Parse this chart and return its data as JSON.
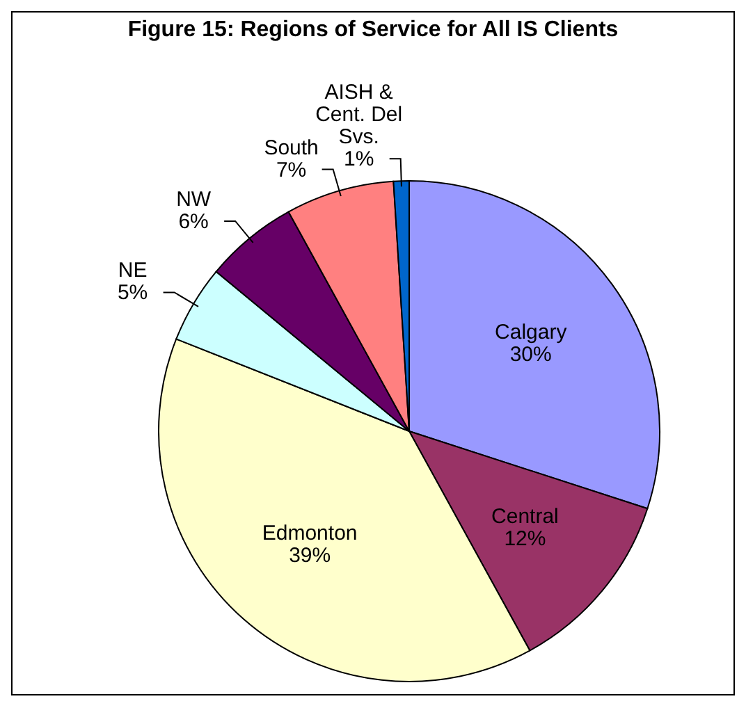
{
  "chart_data": {
    "type": "pie",
    "title": "Figure 15: Regions of Service for All IS Clients",
    "categories": [
      "Calgary",
      "Central",
      "Edmonton",
      "NE",
      "NW",
      "South",
      "AISH & Cent. Del Svs."
    ],
    "values": [
      30,
      12,
      39,
      5,
      6,
      7,
      1
    ],
    "value_labels": [
      "30%",
      "12%",
      "39%",
      "5%",
      "6%",
      "7%",
      "1%"
    ],
    "colors": [
      "#9999ff",
      "#993366",
      "#ffffcc",
      "#ccffff",
      "#660066",
      "#ff8080",
      "#0066cc"
    ]
  }
}
